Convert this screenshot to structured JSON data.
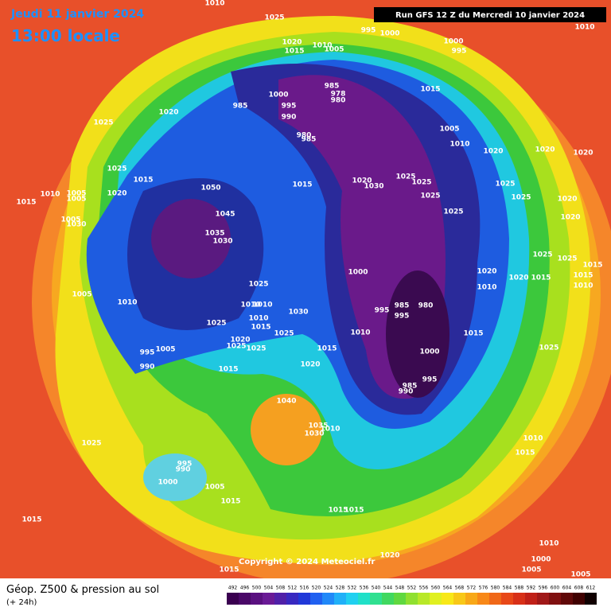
{
  "header": {
    "date": "Jeudi 11 janvier 2024",
    "time": "13:00 locale",
    "run": "Run GFS 12 Z du Mercredi 10 janvier 2024",
    "copyright": "Copyright © 2024 Meteociel.fr"
  },
  "footer": {
    "title": "Géop. Z500 & pression au sol",
    "lead": "(+ 24h)"
  },
  "legend": {
    "ticks": [
      492,
      496,
      500,
      504,
      508,
      512,
      516,
      520,
      524,
      528,
      532,
      536,
      540,
      544,
      548,
      552,
      556,
      560,
      564,
      568,
      572,
      576,
      580,
      584,
      588,
      592,
      596,
      600,
      604,
      608,
      612
    ],
    "colors": [
      "#3a0050",
      "#4a0868",
      "#5a1080",
      "#6a1a96",
      "#5020a8",
      "#3828c0",
      "#2038d8",
      "#2060f0",
      "#2088f8",
      "#20b0f8",
      "#20d0f0",
      "#20e0c8",
      "#30e090",
      "#40d860",
      "#60d840",
      "#90e030",
      "#b8e828",
      "#e0f020",
      "#f8e818",
      "#f8c818",
      "#f8a818",
      "#f88818",
      "#f06818",
      "#e84818",
      "#d83018",
      "#c02018",
      "#a01818",
      "#801010",
      "#600808",
      "#400000",
      "#100000"
    ]
  },
  "isobars": [
    1010,
    1025,
    1020,
    1015,
    1010,
    1005,
    995,
    1000,
    1000,
    995,
    1010,
    1000,
    985,
    995,
    990,
    985,
    978,
    980,
    980,
    985,
    1015,
    1005,
    1010,
    1020,
    1020,
    1020,
    1025,
    1020,
    1025,
    1015,
    1020,
    1050,
    1015,
    1020,
    1030,
    1025,
    1025,
    1025,
    1025,
    1025,
    1020,
    1020,
    1025,
    1010,
    1005,
    1005,
    1015,
    1005,
    1030,
    1045,
    1035,
    1030,
    1000,
    1025,
    1020,
    1010,
    1020,
    1015,
    1015,
    1025,
    1025,
    1015,
    1010,
    1005,
    1010,
    1010,
    1010,
    1030,
    1010,
    1015,
    1025,
    1010,
    1025,
    1015,
    1025,
    1020,
    1025,
    1025,
    1015,
    995,
    1005,
    990,
    1000,
    1020,
    1015,
    995,
    985,
    990,
    1040,
    1035,
    1010,
    1030,
    1010,
    1015,
    1025,
    995,
    990,
    1000,
    1005,
    1015,
    1015,
    1015,
    1015,
    1020,
    1010,
    1000,
    1005,
    1015,
    1005,
    995,
    985,
    980,
    995
  ]
}
